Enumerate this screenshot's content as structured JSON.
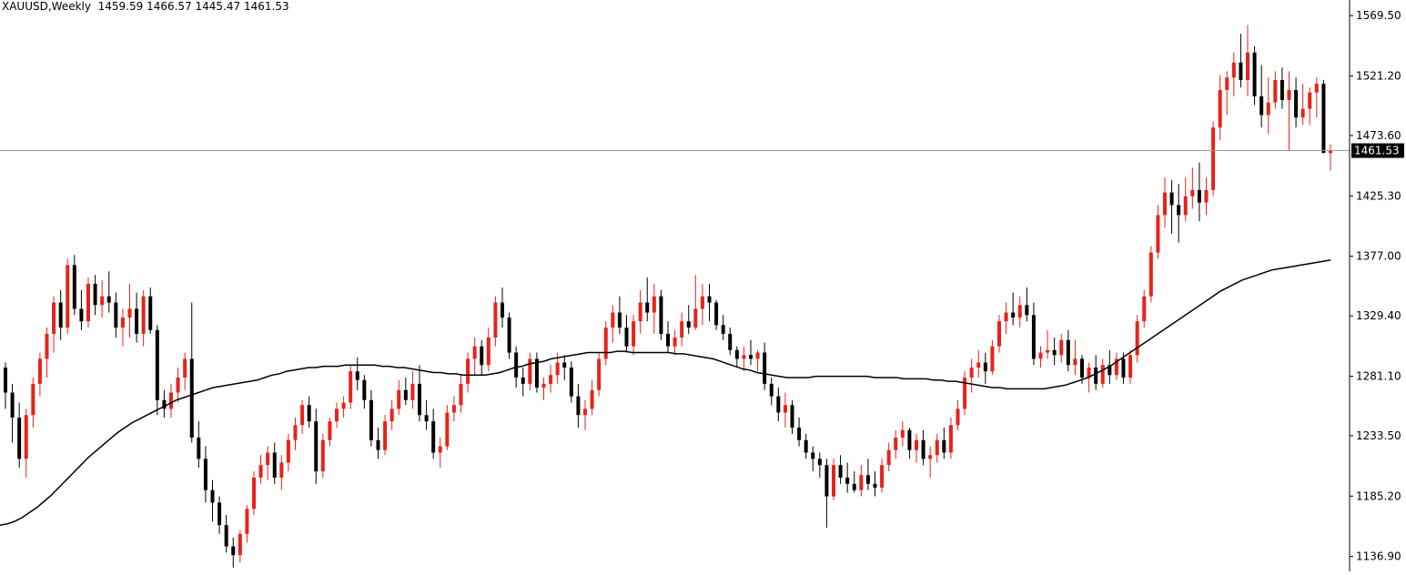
{
  "header": {
    "symbol_timeframe": "XAUUSD,Weekly",
    "open": "1459.59",
    "high": "1466.57",
    "low": "1445.47",
    "close": "1461.53"
  },
  "price_tag": "1461.53",
  "colors": {
    "bull": "#e8221b",
    "bear": "#000000",
    "ma_line": "#000000",
    "current_price_line": "#9a9a9a",
    "price_tag_bg": "#000000",
    "price_tag_text": "#ffffff",
    "background": "#ffffff"
  },
  "chart_data": {
    "type": "candlestick",
    "symbol": "XAUUSD",
    "timeframe": "Weekly",
    "ylim": [
      1125,
      1582
    ],
    "y_ticks": [
      1569.5,
      1521.2,
      1473.6,
      1425.3,
      1377.0,
      1329.4,
      1281.1,
      1233.5,
      1185.2,
      1136.9
    ],
    "y_tick_labels": [
      "1569.50",
      "1521.20",
      "1473.60",
      "1425.30",
      "1377.00",
      "1329.40",
      "1281.10",
      "1233.50",
      "1185.20",
      "1136.90"
    ],
    "current_price": 1461.53,
    "grid": false,
    "bull_color": "red",
    "bear_color": "black",
    "candles_ohlc": [
      [
        1288,
        1292,
        1255,
        1268
      ],
      [
        1268,
        1275,
        1228,
        1248
      ],
      [
        1248,
        1260,
        1208,
        1215
      ],
      [
        1215,
        1255,
        1200,
        1250
      ],
      [
        1250,
        1280,
        1240,
        1275
      ],
      [
        1275,
        1300,
        1265,
        1295
      ],
      [
        1295,
        1320,
        1280,
        1315
      ],
      [
        1315,
        1345,
        1300,
        1340
      ],
      [
        1340,
        1350,
        1310,
        1320
      ],
      [
        1320,
        1375,
        1315,
        1370
      ],
      [
        1370,
        1378,
        1330,
        1335
      ],
      [
        1335,
        1350,
        1318,
        1325
      ],
      [
        1325,
        1360,
        1320,
        1355
      ],
      [
        1355,
        1362,
        1330,
        1338
      ],
      [
        1338,
        1358,
        1328,
        1345
      ],
      [
        1345,
        1365,
        1332,
        1340
      ],
      [
        1340,
        1348,
        1312,
        1320
      ],
      [
        1320,
        1335,
        1305,
        1328
      ],
      [
        1328,
        1355,
        1312,
        1335
      ],
      [
        1335,
        1348,
        1308,
        1315
      ],
      [
        1315,
        1350,
        1305,
        1345
      ],
      [
        1345,
        1352,
        1315,
        1318
      ],
      [
        1318,
        1322,
        1250,
        1262
      ],
      [
        1262,
        1270,
        1248,
        1255
      ],
      [
        1255,
        1275,
        1248,
        1268
      ],
      [
        1268,
        1288,
        1260,
        1280
      ],
      [
        1280,
        1300,
        1270,
        1295
      ],
      [
        1295,
        1340,
        1228,
        1232
      ],
      [
        1232,
        1245,
        1208,
        1215
      ],
      [
        1215,
        1225,
        1180,
        1190
      ],
      [
        1190,
        1198,
        1165,
        1180
      ],
      [
        1180,
        1185,
        1155,
        1162
      ],
      [
        1162,
        1170,
        1140,
        1145
      ],
      [
        1145,
        1152,
        1128,
        1138
      ],
      [
        1138,
        1158,
        1132,
        1155
      ],
      [
        1155,
        1178,
        1148,
        1175
      ],
      [
        1175,
        1205,
        1170,
        1200
      ],
      [
        1200,
        1218,
        1195,
        1210
      ],
      [
        1210,
        1225,
        1198,
        1220
      ],
      [
        1220,
        1228,
        1195,
        1200
      ],
      [
        1200,
        1218,
        1190,
        1212
      ],
      [
        1212,
        1235,
        1205,
        1230
      ],
      [
        1230,
        1248,
        1222,
        1242
      ],
      [
        1242,
        1262,
        1235,
        1258
      ],
      [
        1258,
        1265,
        1240,
        1245
      ],
      [
        1245,
        1255,
        1195,
        1205
      ],
      [
        1205,
        1235,
        1200,
        1230
      ],
      [
        1230,
        1248,
        1225,
        1245
      ],
      [
        1245,
        1260,
        1240,
        1255
      ],
      [
        1255,
        1265,
        1248,
        1260
      ],
      [
        1260,
        1290,
        1255,
        1285
      ],
      [
        1285,
        1296,
        1270,
        1278
      ],
      [
        1278,
        1282,
        1255,
        1262
      ],
      [
        1262,
        1270,
        1225,
        1230
      ],
      [
        1230,
        1240,
        1215,
        1222
      ],
      [
        1222,
        1250,
        1218,
        1245
      ],
      [
        1245,
        1262,
        1238,
        1255
      ],
      [
        1255,
        1278,
        1250,
        1270
      ],
      [
        1270,
        1280,
        1258,
        1262
      ],
      [
        1262,
        1285,
        1255,
        1275
      ],
      [
        1275,
        1290,
        1245,
        1250
      ],
      [
        1250,
        1262,
        1238,
        1245
      ],
      [
        1245,
        1255,
        1215,
        1220
      ],
      [
        1220,
        1232,
        1208,
        1225
      ],
      [
        1225,
        1258,
        1222,
        1252
      ],
      [
        1252,
        1265,
        1245,
        1258
      ],
      [
        1258,
        1282,
        1252,
        1275
      ],
      [
        1275,
        1300,
        1268,
        1295
      ],
      [
        1295,
        1312,
        1282,
        1305
      ],
      [
        1305,
        1310,
        1282,
        1290
      ],
      [
        1290,
        1320,
        1285,
        1312
      ],
      [
        1312,
        1345,
        1305,
        1340
      ],
      [
        1340,
        1352,
        1320,
        1328
      ],
      [
        1328,
        1332,
        1295,
        1300
      ],
      [
        1300,
        1305,
        1272,
        1280
      ],
      [
        1280,
        1288,
        1265,
        1275
      ],
      [
        1275,
        1300,
        1270,
        1295
      ],
      [
        1295,
        1300,
        1268,
        1272
      ],
      [
        1272,
        1280,
        1262,
        1275
      ],
      [
        1275,
        1290,
        1268,
        1282
      ],
      [
        1282,
        1300,
        1275,
        1292
      ],
      [
        1292,
        1298,
        1278,
        1288
      ],
      [
        1288,
        1293,
        1260,
        1265
      ],
      [
        1265,
        1275,
        1240,
        1250
      ],
      [
        1250,
        1262,
        1238,
        1255
      ],
      [
        1255,
        1278,
        1250,
        1270
      ],
      [
        1270,
        1300,
        1265,
        1295
      ],
      [
        1295,
        1325,
        1290,
        1320
      ],
      [
        1320,
        1338,
        1308,
        1332
      ],
      [
        1332,
        1345,
        1315,
        1320
      ],
      [
        1320,
        1330,
        1300,
        1305
      ],
      [
        1305,
        1330,
        1298,
        1325
      ],
      [
        1325,
        1350,
        1315,
        1340
      ],
      [
        1340,
        1360,
        1325,
        1332
      ],
      [
        1332,
        1355,
        1315,
        1345
      ],
      [
        1345,
        1350,
        1310,
        1315
      ],
      [
        1315,
        1325,
        1300,
        1305
      ],
      [
        1305,
        1318,
        1298,
        1312
      ],
      [
        1312,
        1332,
        1305,
        1325
      ],
      [
        1325,
        1338,
        1315,
        1320
      ],
      [
        1320,
        1362,
        1318,
        1335
      ],
      [
        1335,
        1355,
        1322,
        1345
      ],
      [
        1345,
        1355,
        1325,
        1340
      ],
      [
        1340,
        1342,
        1318,
        1322
      ],
      [
        1322,
        1330,
        1310,
        1315
      ],
      [
        1315,
        1320,
        1298,
        1302
      ],
      [
        1302,
        1305,
        1288,
        1295
      ],
      [
        1295,
        1305,
        1285,
        1298
      ],
      [
        1298,
        1310,
        1290,
        1295
      ],
      [
        1295,
        1302,
        1285,
        1300
      ],
      [
        1300,
        1308,
        1270,
        1275
      ],
      [
        1275,
        1280,
        1258,
        1265
      ],
      [
        1265,
        1272,
        1245,
        1252
      ],
      [
        1252,
        1268,
        1240,
        1258
      ],
      [
        1258,
        1262,
        1235,
        1240
      ],
      [
        1240,
        1248,
        1225,
        1230
      ],
      [
        1230,
        1235,
        1215,
        1220
      ],
      [
        1220,
        1225,
        1205,
        1215
      ],
      [
        1215,
        1220,
        1200,
        1210
      ],
      [
        1210,
        1215,
        1160,
        1185
      ],
      [
        1185,
        1215,
        1182,
        1210
      ],
      [
        1210,
        1218,
        1195,
        1200
      ],
      [
        1200,
        1212,
        1188,
        1195
      ],
      [
        1195,
        1205,
        1188,
        1190
      ],
      [
        1190,
        1210,
        1185,
        1202
      ],
      [
        1202,
        1215,
        1190,
        1195
      ],
      [
        1195,
        1205,
        1185,
        1192
      ],
      [
        1192,
        1215,
        1188,
        1210
      ],
      [
        1210,
        1228,
        1205,
        1222
      ],
      [
        1222,
        1238,
        1215,
        1232
      ],
      [
        1232,
        1245,
        1225,
        1238
      ],
      [
        1238,
        1240,
        1215,
        1222
      ],
      [
        1222,
        1235,
        1212,
        1230
      ],
      [
        1230,
        1238,
        1210,
        1215
      ],
      [
        1215,
        1225,
        1200,
        1218
      ],
      [
        1218,
        1235,
        1212,
        1230
      ],
      [
        1230,
        1240,
        1215,
        1220
      ],
      [
        1220,
        1248,
        1215,
        1242
      ],
      [
        1242,
        1262,
        1238,
        1255
      ],
      [
        1255,
        1285,
        1250,
        1280
      ],
      [
        1280,
        1295,
        1268,
        1288
      ],
      [
        1288,
        1302,
        1280,
        1292
      ],
      [
        1292,
        1300,
        1275,
        1285
      ],
      [
        1285,
        1310,
        1282,
        1305
      ],
      [
        1305,
        1330,
        1300,
        1325
      ],
      [
        1325,
        1340,
        1315,
        1332
      ],
      [
        1332,
        1348,
        1322,
        1328
      ],
      [
        1328,
        1345,
        1320,
        1338
      ],
      [
        1338,
        1352,
        1325,
        1330
      ],
      [
        1330,
        1340,
        1290,
        1295
      ],
      [
        1295,
        1305,
        1288,
        1300
      ],
      [
        1300,
        1318,
        1295,
        1302
      ],
      [
        1302,
        1312,
        1290,
        1298
      ],
      [
        1298,
        1315,
        1292,
        1310
      ],
      [
        1310,
        1318,
        1285,
        1290
      ],
      [
        1290,
        1310,
        1282,
        1295
      ],
      [
        1295,
        1298,
        1275,
        1280
      ],
      [
        1280,
        1292,
        1268,
        1288
      ],
      [
        1288,
        1298,
        1270,
        1275
      ],
      [
        1275,
        1295,
        1272,
        1290
      ],
      [
        1290,
        1302,
        1275,
        1282
      ],
      [
        1282,
        1300,
        1278,
        1295
      ],
      [
        1295,
        1300,
        1275,
        1280
      ],
      [
        1280,
        1302,
        1275,
        1298
      ],
      [
        1298,
        1330,
        1292,
        1325
      ],
      [
        1325,
        1350,
        1320,
        1345
      ],
      [
        1345,
        1385,
        1340,
        1380
      ],
      [
        1380,
        1418,
        1375,
        1410
      ],
      [
        1410,
        1440,
        1400,
        1428
      ],
      [
        1428,
        1438,
        1395,
        1418
      ],
      [
        1418,
        1435,
        1388,
        1410
      ],
      [
        1410,
        1440,
        1405,
        1425
      ],
      [
        1425,
        1448,
        1415,
        1430
      ],
      [
        1430,
        1452,
        1405,
        1420
      ],
      [
        1420,
        1440,
        1410,
        1430
      ],
      [
        1430,
        1485,
        1425,
        1480
      ],
      [
        1480,
        1522,
        1470,
        1510
      ],
      [
        1510,
        1525,
        1490,
        1520
      ],
      [
        1520,
        1540,
        1505,
        1532
      ],
      [
        1532,
        1555,
        1512,
        1518
      ],
      [
        1518,
        1562,
        1505,
        1540
      ],
      [
        1540,
        1545,
        1498,
        1505
      ],
      [
        1505,
        1530,
        1480,
        1490
      ],
      [
        1490,
        1520,
        1475,
        1500
      ],
      [
        1500,
        1525,
        1495,
        1518
      ],
      [
        1518,
        1528,
        1495,
        1502
      ],
      [
        1502,
        1525,
        1462,
        1510
      ],
      [
        1510,
        1520,
        1480,
        1488
      ],
      [
        1488,
        1515,
        1482,
        1495
      ],
      [
        1495,
        1512,
        1482,
        1508
      ],
      [
        1508,
        1520,
        1488,
        1515
      ],
      [
        1515,
        1518,
        1460,
        1459.59
      ],
      [
        1459.59,
        1466.57,
        1445.47,
        1461.53
      ]
    ],
    "moving_average": [
      1162,
      1163,
      1165,
      1168,
      1172,
      1176,
      1181,
      1186,
      1192,
      1198,
      1204,
      1210,
      1216,
      1221,
      1226,
      1231,
      1236,
      1240,
      1244,
      1247,
      1250,
      1253,
      1256,
      1259,
      1262,
      1264,
      1266,
      1268,
      1270,
      1272,
      1273,
      1274,
      1275,
      1276,
      1277,
      1278,
      1280,
      1282,
      1283,
      1285,
      1286,
      1287,
      1288,
      1288,
      1289,
      1289,
      1289,
      1290,
      1290,
      1290,
      1290,
      1290,
      1289,
      1289,
      1288,
      1288,
      1287,
      1286,
      1285,
      1284,
      1284,
      1283,
      1283,
      1282,
      1282,
      1282,
      1282,
      1283,
      1284,
      1286,
      1288,
      1289,
      1291,
      1292,
      1293,
      1295,
      1296,
      1297,
      1298,
      1299,
      1300,
      1300,
      1300,
      1300,
      1301,
      1301,
      1300,
      1300,
      1300,
      1300,
      1300,
      1300,
      1299,
      1299,
      1298,
      1297,
      1296,
      1295,
      1293,
      1291,
      1289,
      1287,
      1286,
      1284,
      1283,
      1282,
      1281,
      1280,
      1280,
      1280,
      1280,
      1281,
      1281,
      1281,
      1281,
      1281,
      1281,
      1281,
      1281,
      1280,
      1280,
      1280,
      1280,
      1279,
      1279,
      1279,
      1279,
      1278,
      1278,
      1277,
      1277,
      1276,
      1275,
      1274,
      1273,
      1272,
      1272,
      1271,
      1271,
      1271,
      1271,
      1271,
      1271,
      1272,
      1273,
      1274,
      1276,
      1278,
      1280,
      1283,
      1286,
      1289,
      1293,
      1297,
      1301,
      1305,
      1309,
      1313,
      1317,
      1321,
      1325,
      1329,
      1333,
      1337,
      1341,
      1345,
      1349,
      1352,
      1355,
      1358,
      1360,
      1362,
      1364,
      1366,
      1367,
      1368,
      1369,
      1370,
      1371,
      1372,
      1373,
      1374
    ]
  }
}
